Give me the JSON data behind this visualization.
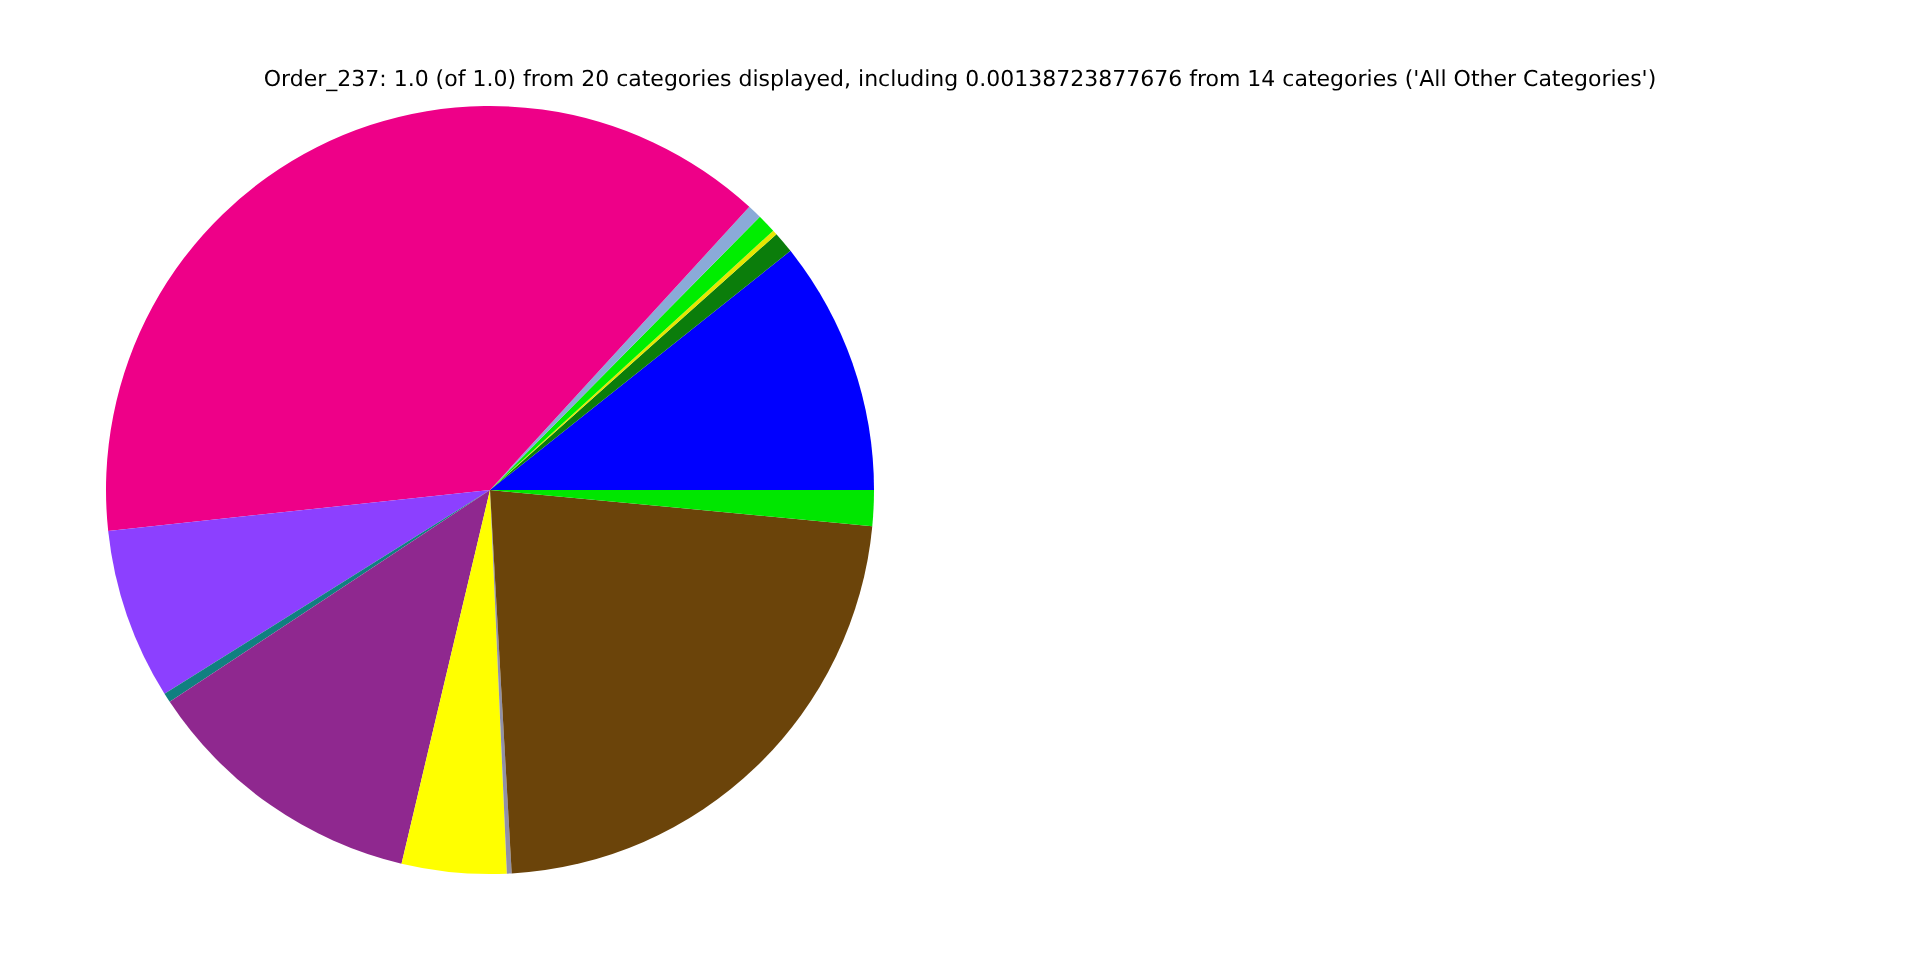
{
  "chart_data": {
    "type": "pie",
    "title": "Order_237: 1.0 (of 1.0) from 20 categories displayed, including 0.00138723877676 from 14 categories ('All Other Categories')",
    "categories": [
      null,
      null,
      null,
      null,
      null,
      null,
      null,
      null,
      null,
      null,
      null,
      null,
      null
    ],
    "values": [
      10.7,
      0.9,
      0.2,
      0.8,
      0.6,
      38.5,
      7.2,
      0.4,
      12.0,
      4.4,
      0.2,
      22.6,
      1.5
    ],
    "colors": [
      "#0000ff",
      "#0b7d0b",
      "#e6e600",
      "#00ee00",
      "#8aaad8",
      "#ee0088",
      "#8c40ff",
      "#108080",
      "#8f288f",
      "#ffff00",
      "#9090a8",
      "#6b440a",
      "#00e600"
    ]
  }
}
